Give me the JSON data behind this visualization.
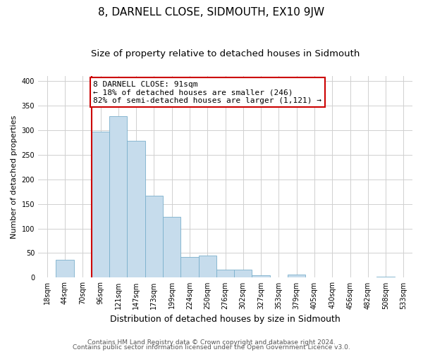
{
  "title": "8, DARNELL CLOSE, SIDMOUTH, EX10 9JW",
  "subtitle": "Size of property relative to detached houses in Sidmouth",
  "xlabel": "Distribution of detached houses by size in Sidmouth",
  "ylabel": "Number of detached properties",
  "bar_labels": [
    "18sqm",
    "44sqm",
    "70sqm",
    "96sqm",
    "121sqm",
    "147sqm",
    "173sqm",
    "199sqm",
    "224sqm",
    "250sqm",
    "276sqm",
    "302sqm",
    "327sqm",
    "353sqm",
    "379sqm",
    "405sqm",
    "430sqm",
    "456sqm",
    "482sqm",
    "508sqm",
    "533sqm"
  ],
  "bar_values": [
    0,
    37,
    0,
    297,
    328,
    278,
    166,
    124,
    42,
    45,
    16,
    17,
    5,
    0,
    6,
    0,
    0,
    0,
    0,
    2,
    0
  ],
  "bar_color": "#c6dcec",
  "bar_edge_color": "#7ab0cc",
  "marker_line_color": "#cc0000",
  "annotation_line1": "8 DARNELL CLOSE: 91sqm",
  "annotation_line2": "← 18% of detached houses are smaller (246)",
  "annotation_line3": "82% of semi-detached houses are larger (1,121) →",
  "annotation_box_color": "#ffffff",
  "annotation_box_edge": "#cc0000",
  "ylim": [
    0,
    410
  ],
  "yticks": [
    0,
    50,
    100,
    150,
    200,
    250,
    300,
    350,
    400
  ],
  "footer_line1": "Contains HM Land Registry data © Crown copyright and database right 2024.",
  "footer_line2": "Contains public sector information licensed under the Open Government Licence v3.0.",
  "title_fontsize": 11,
  "subtitle_fontsize": 9.5,
  "xlabel_fontsize": 9,
  "ylabel_fontsize": 8,
  "tick_fontsize": 7,
  "annotation_fontsize": 8,
  "footer_fontsize": 6.5,
  "background_color": "#ffffff",
  "grid_color": "#d0d0d0"
}
